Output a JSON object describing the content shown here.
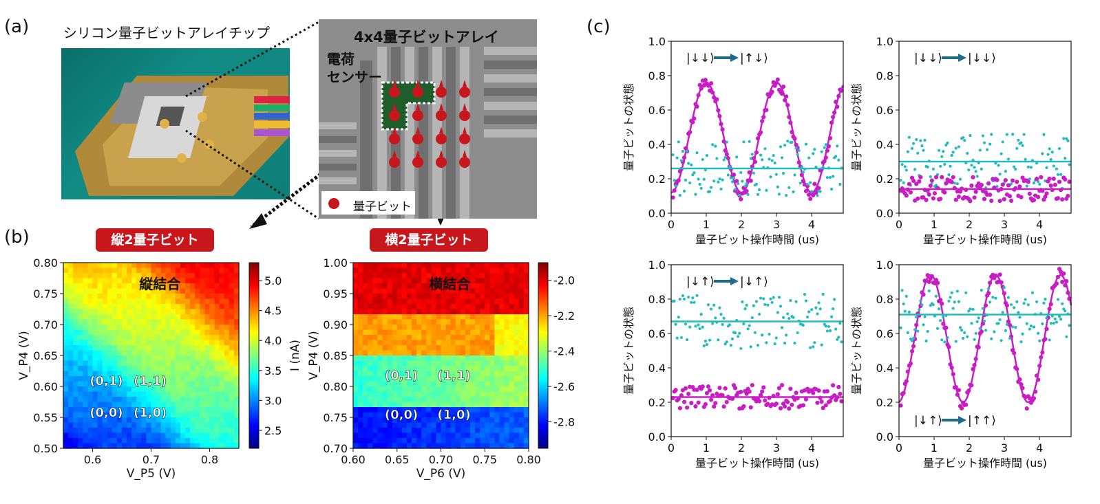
{
  "panels": {
    "a": "(a)",
    "b": "(b)",
    "c": "(c)"
  },
  "panel_a": {
    "chip_title": "シリコン量子ビットアレイチップ",
    "array_title": "4x4量子ビットアレイ",
    "sensor_line1": "電荷",
    "sensor_line2": "センサー",
    "legend_label": "量子ビット"
  },
  "panel_b": {
    "badge_vertical": "縦2量子ビット",
    "badge_horizontal": "横2量子ビット"
  },
  "colors": {
    "magenta": "#c81cc4",
    "cyan": "#22bcbc",
    "red": "#c8161d",
    "arrow": "#1e6b8a"
  },
  "chart_data": [
    {
      "type": "heatmap",
      "title": "縦結合",
      "xlabel": "V_P5 (V)",
      "ylabel": "V_P4 (V)",
      "xlim": [
        0.55,
        0.85
      ],
      "ylim": [
        0.5,
        0.8
      ],
      "xticks": [
        "0.6",
        "0.7",
        "0.8"
      ],
      "yticks": [
        "0.80",
        "0.75",
        "0.70",
        "0.65",
        "0.60",
        "0.55",
        "0.50"
      ],
      "colorbar_label": "I (nA)",
      "colorbar_ticks": [
        "5.0",
        "4.5",
        "4.0",
        "3.5",
        "3.0",
        "2.5"
      ],
      "colorbar_range": [
        2.2,
        5.3
      ],
      "annotations": [
        "(0,1)",
        "(1,1)",
        "(0,0)",
        "(1,0)"
      ]
    },
    {
      "type": "heatmap",
      "title": "横結合",
      "xlabel": "V_P6 (V)",
      "ylabel": "V_P4 (V)",
      "xlim": [
        0.6,
        0.8
      ],
      "ylim": [
        0.7,
        1.0
      ],
      "xticks": [
        "0.60",
        "0.65",
        "0.70",
        "0.75",
        "0.80"
      ],
      "yticks": [
        "1.00",
        "0.95",
        "0.90",
        "0.85",
        "0.80",
        "0.75",
        "0.70"
      ],
      "colorbar_label": "I (nA)",
      "colorbar_ticks": [
        "-2.0",
        "-2.2",
        "-2.4",
        "-2.6",
        "-2.8"
      ],
      "colorbar_range": [
        -2.95,
        -1.9
      ],
      "annotations": [
        "(0,1)",
        "(1,1)",
        "(0,0)",
        "(1,0)"
      ]
    },
    {
      "type": "scatter",
      "label": "|↓↓⟩ → |↑↓⟩",
      "xlabel": "量子ビット操作時間 (us)",
      "ylabel": "量子ビットの状態",
      "xlim": [
        0,
        4.9
      ],
      "ylim": [
        0,
        1.0
      ],
      "series": [
        {
          "name": "magenta",
          "model": "oscillation",
          "mean": 0.44,
          "amplitude": 0.32,
          "period": 2.0,
          "phase_peak": 1.0
        },
        {
          "name": "cyan",
          "model": "flat",
          "mean": 0.26
        }
      ]
    },
    {
      "type": "scatter",
      "label": "|↓↓⟩ → |↓↓⟩",
      "xlabel": "量子ビット操作時間 (us)",
      "ylabel": "量子ビットの状態",
      "xlim": [
        0,
        4.9
      ],
      "ylim": [
        0,
        1.0
      ],
      "series": [
        {
          "name": "cyan",
          "model": "flat",
          "mean": 0.3
        },
        {
          "name": "magenta",
          "model": "flat",
          "mean": 0.14
        }
      ]
    },
    {
      "type": "scatter",
      "label": "|↓↑⟩ → |↓↑⟩",
      "xlabel": "量子ビット操作時間 (us)",
      "ylabel": "量子ビットの状態",
      "xlim": [
        0,
        4.9
      ],
      "ylim": [
        0,
        1.0
      ],
      "series": [
        {
          "name": "cyan",
          "model": "flat",
          "mean": 0.67
        },
        {
          "name": "magenta",
          "model": "flat",
          "mean": 0.23
        }
      ]
    },
    {
      "type": "scatter",
      "label": "|↓↑⟩ → |↑↑⟩",
      "xlabel": "量子ビット操作時間 (us)",
      "ylabel": "量子ビットの状態",
      "xlim": [
        0,
        4.9
      ],
      "ylim": [
        0,
        1.0
      ],
      "series": [
        {
          "name": "magenta",
          "model": "oscillation",
          "mean": 0.57,
          "amplitude": 0.37,
          "period": 1.85,
          "phase_peak": 0.9
        },
        {
          "name": "cyan",
          "model": "flat",
          "mean": 0.71
        }
      ]
    }
  ]
}
